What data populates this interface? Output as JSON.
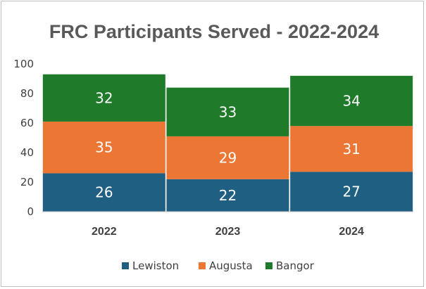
{
  "chart_data": {
    "type": "bar",
    "stacked": true,
    "title": "FRC Participants Served - 2022-2024",
    "xlabel": "",
    "ylabel": "",
    "categories": [
      "2022",
      "2023",
      "2024"
    ],
    "ylim": [
      0,
      100
    ],
    "yticks": [
      0,
      20,
      40,
      60,
      80,
      100
    ],
    "grid": false,
    "legend_position": "bottom",
    "series": [
      {
        "name": "Lewiston",
        "color": "#1f5f82",
        "values": [
          26,
          22,
          27
        ]
      },
      {
        "name": "Augusta",
        "color": "#ec7633",
        "values": [
          35,
          29,
          31
        ]
      },
      {
        "name": "Bangor",
        "color": "#1f7a2a",
        "values": [
          32,
          33,
          34
        ]
      }
    ]
  }
}
